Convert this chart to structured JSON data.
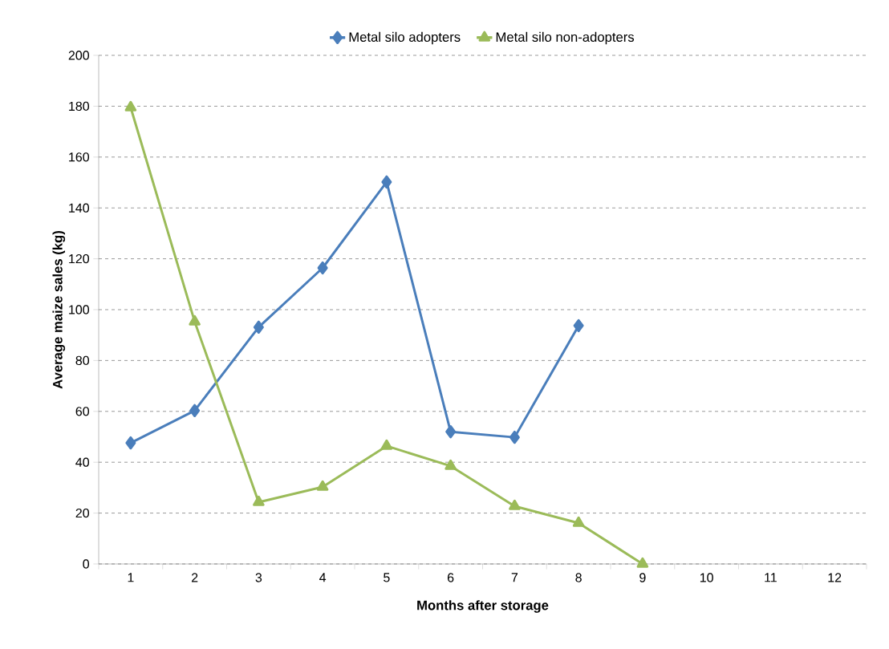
{
  "chart_data": {
    "type": "line",
    "xlabel": "Months after storage",
    "ylabel": "Average maize sales (kg)",
    "categories": [
      "1",
      "2",
      "3",
      "4",
      "5",
      "6",
      "7",
      "8",
      "9",
      "10",
      "11",
      "12"
    ],
    "series": [
      {
        "name": "Metal silo adopters",
        "color": "#4a7ebb",
        "marker": "diamond",
        "values": [
          47.6,
          60.3,
          93.1,
          116.4,
          150.2,
          52,
          49.8,
          93.7,
          null,
          null,
          null,
          null
        ]
      },
      {
        "name": "Metal silo non-adopters",
        "color": "#9bbb59",
        "marker": "triangle",
        "values": [
          179.5,
          95.3,
          24.3,
          30.3,
          46.4,
          38.5,
          22.7,
          16.1,
          0,
          null,
          null,
          null
        ]
      }
    ],
    "ylim": [
      0,
      200
    ],
    "yticks": [
      0,
      20,
      40,
      60,
      80,
      100,
      120,
      140,
      160,
      180,
      200
    ],
    "grid": "y",
    "legend": "top",
    "line_style": "solid"
  }
}
